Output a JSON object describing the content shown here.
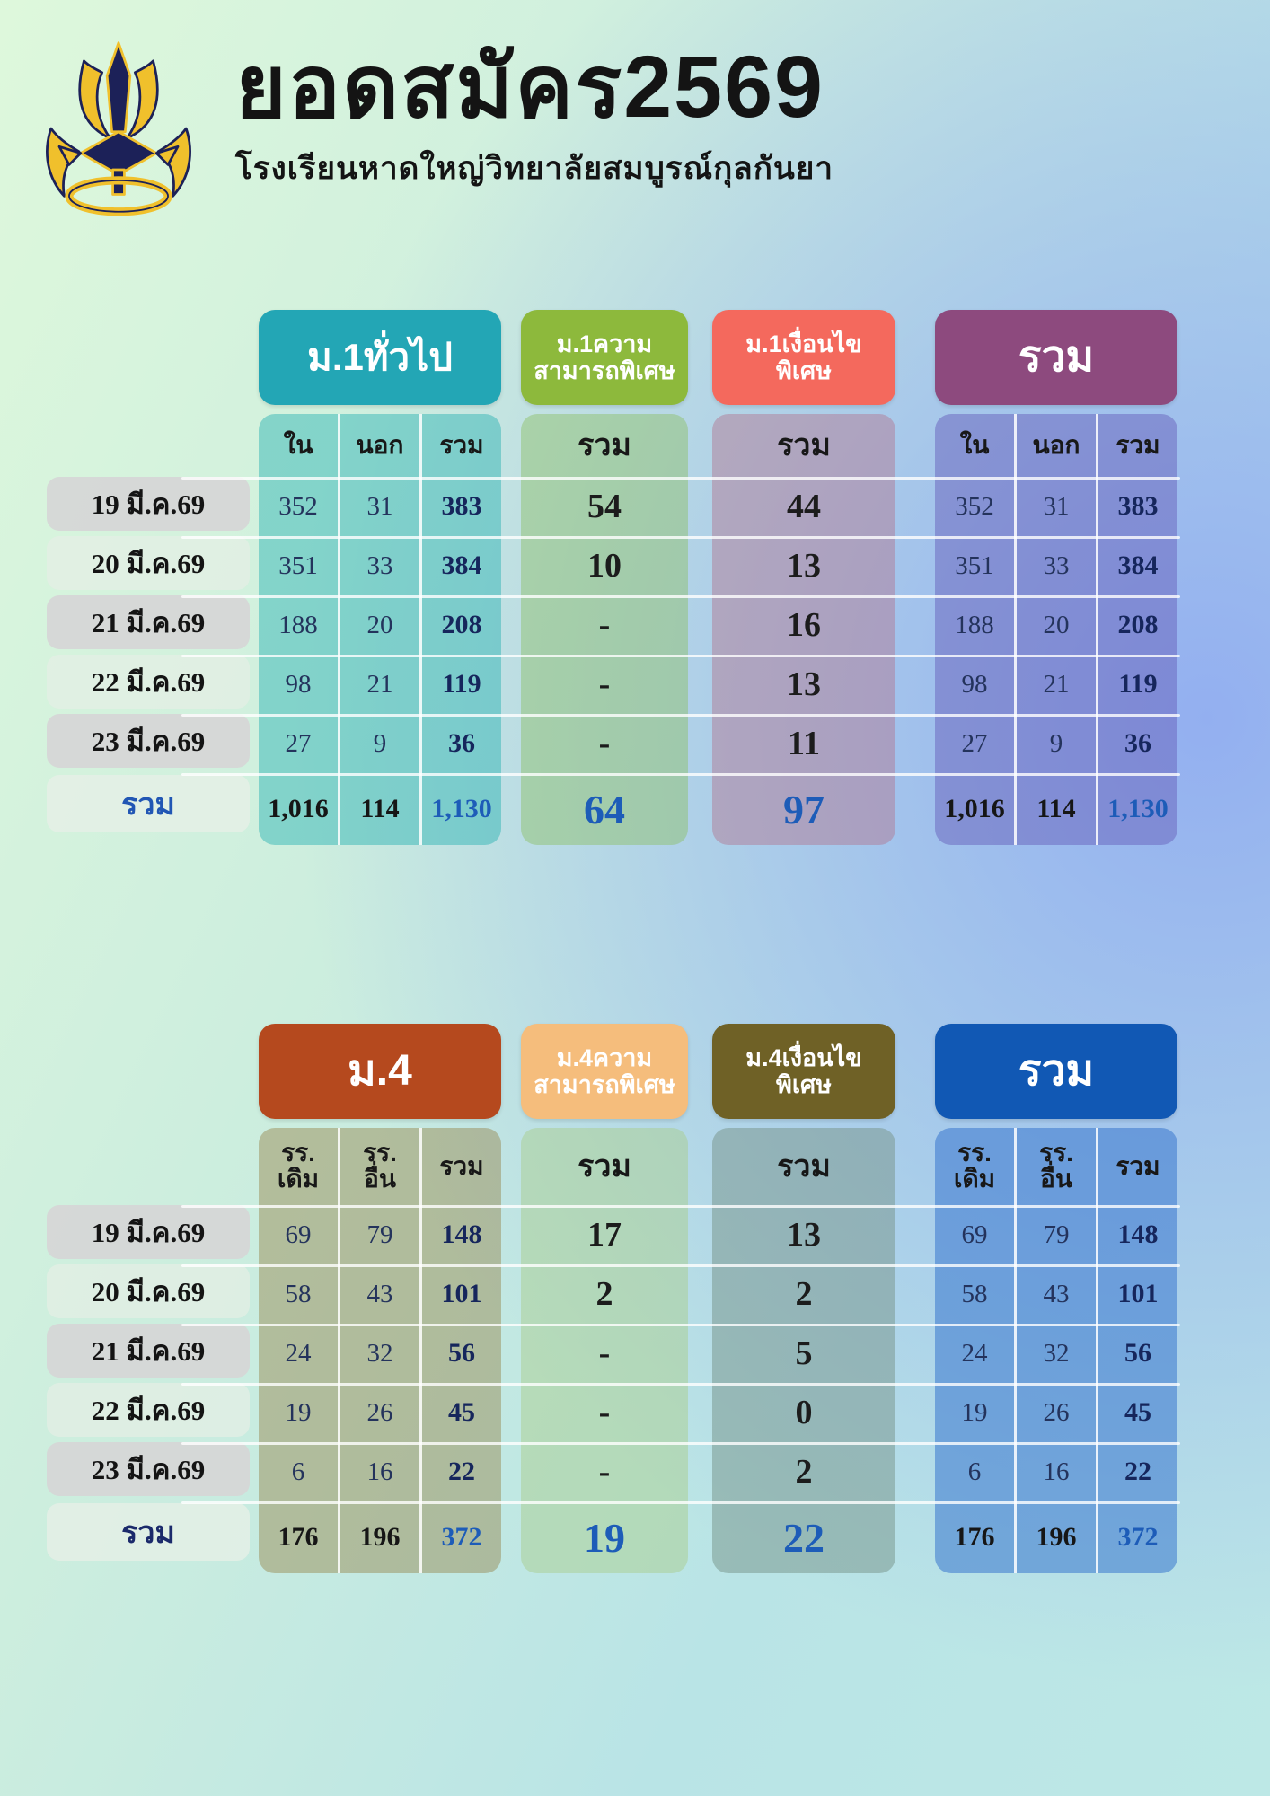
{
  "header": {
    "title": "ยอดสมัคร2569",
    "subtitle": "โรงเรียนหาดใหญ่วิทยาลัยสมบูรณ์กุลกันยา",
    "logo": "school-trident-emblem",
    "logo_colors": {
      "gold": "#f0c02c",
      "navy": "#1c2158"
    }
  },
  "chart_data": [
    {
      "type": "table",
      "groups": [
        {
          "label": "ม.1ทั่วไป",
          "badge_color": "#23a6b5",
          "body_color": "rgba(47,180,180,0.48)",
          "columns": [
            "ใน",
            "นอก",
            "รวม"
          ]
        },
        {
          "label": "ม.1ความ\nสามารถพิเศษ",
          "badge_color": "#8db93c",
          "body_color": "rgba(140,190,100,0.45)",
          "columns": [
            "รวม"
          ]
        },
        {
          "label": "ม.1เงื่อนไข\nพิเศษ",
          "badge_color": "#f4695d",
          "body_color": "rgba(178,116,142,0.45)",
          "columns": [
            "รวม"
          ]
        },
        {
          "label": "รวม",
          "badge_color": "#8d4a7e",
          "body_color": "rgba(104,98,188,0.50)",
          "columns": [
            "ใน",
            "นอก",
            "รวม"
          ]
        }
      ],
      "rows": [
        {
          "label": "19 มี.ค.69",
          "values": [
            "352",
            "31",
            "383",
            "54",
            "44",
            "352",
            "31",
            "383"
          ]
        },
        {
          "label": "20 มี.ค.69",
          "values": [
            "351",
            "33",
            "384",
            "10",
            "13",
            "351",
            "33",
            "384"
          ]
        },
        {
          "label": "21 มี.ค.69",
          "values": [
            "188",
            "20",
            "208",
            "-",
            "16",
            "188",
            "20",
            "208"
          ]
        },
        {
          "label": "22 มี.ค.69",
          "values": [
            "98",
            "21",
            "119",
            "-",
            "13",
            "98",
            "21",
            "119"
          ]
        },
        {
          "label": "23 มี.ค.69",
          "values": [
            "27",
            "9",
            "36",
            "-",
            "11",
            "27",
            "9",
            "36"
          ]
        }
      ],
      "total": {
        "label": "รวม",
        "label_color": "#2156b4",
        "values": [
          "1,016",
          "114",
          "1,130",
          "64",
          "97",
          "1,016",
          "114",
          "1,130"
        ]
      }
    },
    {
      "type": "table",
      "groups": [
        {
          "label": "ม.4",
          "badge_color": "#b5491e",
          "body_color": "rgba(146,125,62,0.42)",
          "columns": [
            "รร.\nเดิม",
            "รร.\nอื่น",
            "รวม"
          ]
        },
        {
          "label": "ม.4ความ\nสามารถพิเศษ",
          "badge_color": "#f5bd7c",
          "body_color": "rgba(170,205,140,0.48)",
          "columns": [
            "รวม"
          ]
        },
        {
          "label": "ม.4เงื่อนไข\nพิเศษ",
          "badge_color": "#6f6126",
          "body_color": "rgba(120,150,140,0.52)",
          "columns": [
            "รวม"
          ]
        },
        {
          "label": "รวม",
          "badge_color": "#1158b4",
          "body_color": "rgba(56,118,205,0.55)",
          "columns": [
            "รร.\nเดิม",
            "รร.\nอื่น",
            "รวม"
          ]
        }
      ],
      "rows": [
        {
          "label": "19 มี.ค.69",
          "values": [
            "69",
            "79",
            "148",
            "17",
            "13",
            "69",
            "79",
            "148"
          ]
        },
        {
          "label": "20 มี.ค.69",
          "values": [
            "58",
            "43",
            "101",
            "2",
            "2",
            "58",
            "43",
            "101"
          ]
        },
        {
          "label": "21 มี.ค.69",
          "values": [
            "24",
            "32",
            "56",
            "-",
            "5",
            "24",
            "32",
            "56"
          ]
        },
        {
          "label": "22 มี.ค.69",
          "values": [
            "19",
            "26",
            "45",
            "-",
            "0",
            "19",
            "26",
            "45"
          ]
        },
        {
          "label": "23 มี.ค.69",
          "values": [
            "6",
            "16",
            "22",
            "-",
            "2",
            "6",
            "16",
            "22"
          ]
        }
      ],
      "total": {
        "label": "รวม",
        "label_color": "#1b2a6b",
        "values": [
          "176",
          "196",
          "372",
          "19",
          "22",
          "176",
          "196",
          "372"
        ]
      }
    }
  ]
}
